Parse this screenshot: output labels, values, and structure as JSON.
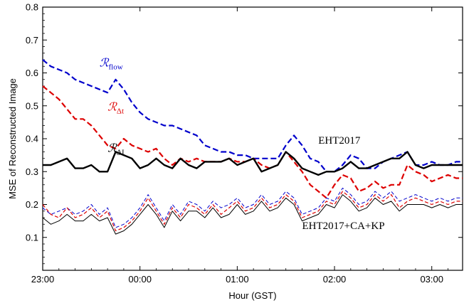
{
  "chart_data": {
    "type": "line",
    "xlabel": "Hour (GST)",
    "ylabel": "MSE of Reconstructed Image",
    "xlim": [
      0,
      259
    ],
    "ylim": [
      0,
      0.8
    ],
    "x_ticks": [
      {
        "value": 0,
        "label": "23:00"
      },
      {
        "value": 60,
        "label": "00:00"
      },
      {
        "value": 120,
        "label": "01:00"
      },
      {
        "value": 180,
        "label": "02:00"
      },
      {
        "value": 240,
        "label": "03:00"
      }
    ],
    "y_ticks": [
      {
        "value": 0.1,
        "label": "0.1"
      },
      {
        "value": 0.2,
        "label": "0.2"
      },
      {
        "value": 0.3,
        "label": "0.3"
      },
      {
        "value": 0.4,
        "label": "0.4"
      },
      {
        "value": 0.5,
        "label": "0.5"
      },
      {
        "value": 0.6,
        "label": "0.6"
      },
      {
        "value": 0.7,
        "label": "0.7"
      },
      {
        "value": 0.8,
        "label": "0.8"
      }
    ],
    "x_unit": "minutes after 23:00 GST",
    "series": [
      {
        "key": "flow_eht",
        "color": "#0000cc",
        "dash": "8,4",
        "width": 2.2,
        "x": [
          0,
          5,
          10,
          15,
          20,
          25,
          30,
          35,
          40,
          45,
          50,
          55,
          60,
          65,
          70,
          75,
          80,
          85,
          90,
          95,
          100,
          105,
          110,
          115,
          120,
          125,
          130,
          135,
          140,
          145,
          150,
          155,
          160,
          165,
          170,
          175,
          180,
          185,
          190,
          195,
          200,
          205,
          210,
          215,
          220,
          225,
          230,
          235,
          240,
          245,
          250,
          255,
          259
        ],
        "y": [
          0.64,
          0.62,
          0.61,
          0.6,
          0.58,
          0.57,
          0.56,
          0.55,
          0.54,
          0.58,
          0.55,
          0.51,
          0.48,
          0.46,
          0.45,
          0.44,
          0.44,
          0.43,
          0.42,
          0.41,
          0.38,
          0.37,
          0.36,
          0.36,
          0.35,
          0.35,
          0.34,
          0.34,
          0.34,
          0.34,
          0.38,
          0.41,
          0.38,
          0.34,
          0.33,
          0.3,
          0.3,
          0.32,
          0.35,
          0.34,
          0.31,
          0.31,
          0.33,
          0.34,
          0.35,
          0.36,
          0.32,
          0.32,
          0.33,
          0.32,
          0.32,
          0.33,
          0.33
        ]
      },
      {
        "key": "dt_eht",
        "color": "#dd0000",
        "dash": "8,4",
        "width": 2.2,
        "x": [
          0,
          5,
          10,
          15,
          20,
          25,
          30,
          35,
          40,
          45,
          50,
          55,
          60,
          65,
          70,
          75,
          80,
          85,
          90,
          95,
          100,
          105,
          110,
          115,
          120,
          125,
          130,
          135,
          140,
          145,
          150,
          155,
          160,
          165,
          170,
          175,
          180,
          185,
          190,
          195,
          200,
          205,
          210,
          215,
          220,
          225,
          230,
          235,
          240,
          245,
          250,
          255,
          259
        ],
        "y": [
          0.56,
          0.54,
          0.52,
          0.49,
          0.46,
          0.46,
          0.44,
          0.41,
          0.38,
          0.37,
          0.4,
          0.38,
          0.37,
          0.36,
          0.37,
          0.34,
          0.32,
          0.34,
          0.33,
          0.34,
          0.33,
          0.33,
          0.33,
          0.34,
          0.33,
          0.33,
          0.34,
          0.32,
          0.31,
          0.32,
          0.36,
          0.33,
          0.3,
          0.26,
          0.24,
          0.22,
          0.26,
          0.29,
          0.28,
          0.24,
          0.25,
          0.27,
          0.25,
          0.26,
          0.26,
          0.32,
          0.3,
          0.29,
          0.27,
          0.28,
          0.29,
          0.28,
          0.28
        ]
      },
      {
        "key": "di_eht",
        "color": "#000000",
        "dash": "",
        "width": 2.4,
        "x": [
          0,
          5,
          10,
          15,
          20,
          25,
          30,
          35,
          40,
          45,
          50,
          55,
          60,
          65,
          70,
          75,
          80,
          85,
          90,
          95,
          100,
          105,
          110,
          115,
          120,
          125,
          130,
          135,
          140,
          145,
          150,
          155,
          160,
          165,
          170,
          175,
          180,
          185,
          190,
          195,
          200,
          205,
          210,
          215,
          220,
          225,
          230,
          235,
          240,
          245,
          250,
          255,
          259
        ],
        "y": [
          0.32,
          0.32,
          0.33,
          0.34,
          0.31,
          0.31,
          0.32,
          0.3,
          0.3,
          0.36,
          0.35,
          0.34,
          0.31,
          0.32,
          0.34,
          0.32,
          0.31,
          0.34,
          0.32,
          0.31,
          0.33,
          0.33,
          0.33,
          0.34,
          0.32,
          0.33,
          0.34,
          0.3,
          0.31,
          0.32,
          0.36,
          0.34,
          0.31,
          0.3,
          0.29,
          0.3,
          0.3,
          0.31,
          0.33,
          0.31,
          0.31,
          0.32,
          0.33,
          0.34,
          0.34,
          0.36,
          0.32,
          0.31,
          0.32,
          0.32,
          0.32,
          0.32,
          0.32
        ]
      },
      {
        "key": "flow_kp",
        "color": "#0000cc",
        "dash": "5,3",
        "width": 1.0,
        "x": [
          0,
          5,
          10,
          15,
          20,
          25,
          30,
          35,
          40,
          45,
          50,
          55,
          60,
          65,
          70,
          75,
          80,
          85,
          90,
          95,
          100,
          105,
          110,
          115,
          120,
          125,
          130,
          135,
          140,
          145,
          150,
          155,
          160,
          165,
          170,
          175,
          180,
          185,
          190,
          195,
          200,
          205,
          210,
          215,
          220,
          225,
          230,
          235,
          240,
          245,
          250,
          255,
          259
        ],
        "y": [
          0.19,
          0.17,
          0.18,
          0.19,
          0.17,
          0.18,
          0.2,
          0.17,
          0.19,
          0.13,
          0.14,
          0.16,
          0.19,
          0.23,
          0.19,
          0.15,
          0.2,
          0.17,
          0.21,
          0.2,
          0.18,
          0.21,
          0.19,
          0.2,
          0.22,
          0.19,
          0.2,
          0.23,
          0.2,
          0.21,
          0.24,
          0.22,
          0.17,
          0.18,
          0.19,
          0.22,
          0.21,
          0.25,
          0.23,
          0.2,
          0.21,
          0.24,
          0.22,
          0.24,
          0.21,
          0.22,
          0.23,
          0.22,
          0.21,
          0.22,
          0.21,
          0.22,
          0.22
        ]
      },
      {
        "key": "dt_kp",
        "color": "#dd0000",
        "dash": "5,3",
        "width": 1.2,
        "x": [
          0,
          5,
          10,
          15,
          20,
          25,
          30,
          35,
          40,
          45,
          50,
          55,
          60,
          65,
          70,
          75,
          80,
          85,
          90,
          95,
          100,
          105,
          110,
          115,
          120,
          125,
          130,
          135,
          140,
          145,
          150,
          155,
          160,
          165,
          170,
          175,
          180,
          185,
          190,
          195,
          200,
          205,
          210,
          215,
          220,
          225,
          230,
          235,
          240,
          245,
          250,
          255,
          259
        ],
        "y": [
          0.2,
          0.17,
          0.16,
          0.19,
          0.16,
          0.17,
          0.19,
          0.16,
          0.18,
          0.12,
          0.13,
          0.15,
          0.18,
          0.22,
          0.18,
          0.14,
          0.19,
          0.16,
          0.2,
          0.19,
          0.17,
          0.2,
          0.17,
          0.19,
          0.21,
          0.18,
          0.19,
          0.22,
          0.19,
          0.2,
          0.23,
          0.21,
          0.16,
          0.17,
          0.18,
          0.21,
          0.2,
          0.24,
          0.22,
          0.19,
          0.2,
          0.23,
          0.21,
          0.23,
          0.19,
          0.21,
          0.22,
          0.21,
          0.2,
          0.21,
          0.2,
          0.21,
          0.21
        ]
      },
      {
        "key": "di_kp",
        "color": "#000000",
        "dash": "",
        "width": 1.0,
        "x": [
          0,
          5,
          10,
          15,
          20,
          25,
          30,
          35,
          40,
          45,
          50,
          55,
          60,
          65,
          70,
          75,
          80,
          85,
          90,
          95,
          100,
          105,
          110,
          115,
          120,
          125,
          130,
          135,
          140,
          145,
          150,
          155,
          160,
          165,
          170,
          175,
          180,
          185,
          190,
          195,
          200,
          205,
          210,
          215,
          220,
          225,
          230,
          235,
          240,
          245,
          250,
          255,
          259
        ],
        "y": [
          0.16,
          0.14,
          0.15,
          0.17,
          0.15,
          0.15,
          0.17,
          0.15,
          0.16,
          0.11,
          0.12,
          0.14,
          0.17,
          0.2,
          0.17,
          0.13,
          0.18,
          0.15,
          0.18,
          0.18,
          0.16,
          0.19,
          0.16,
          0.17,
          0.2,
          0.17,
          0.18,
          0.21,
          0.18,
          0.19,
          0.22,
          0.2,
          0.15,
          0.16,
          0.17,
          0.2,
          0.19,
          0.23,
          0.21,
          0.18,
          0.19,
          0.22,
          0.2,
          0.21,
          0.18,
          0.2,
          0.2,
          0.2,
          0.19,
          0.2,
          0.19,
          0.2,
          0.2
        ]
      }
    ],
    "annotations": [
      {
        "key": "r_flow",
        "script": "ℛ",
        "sub": "flow",
        "color": "#0000cc",
        "x": 35,
        "y": 0.62
      },
      {
        "key": "r_dt",
        "script": "ℛ",
        "sub": "Δt",
        "color": "#dd0000",
        "x": 40,
        "y": 0.485
      },
      {
        "key": "r_di",
        "script": "ℛ",
        "sub": "ΔI",
        "color": "#000000",
        "x": 40,
        "y": 0.36
      },
      {
        "key": "eht2017",
        "text": "EHT2017",
        "color": "#000000",
        "x": 170,
        "y": 0.385
      },
      {
        "key": "eht2017_kp",
        "text": "EHT2017+CA+KP",
        "color": "#000000",
        "x": 160,
        "y": 0.125
      }
    ]
  }
}
